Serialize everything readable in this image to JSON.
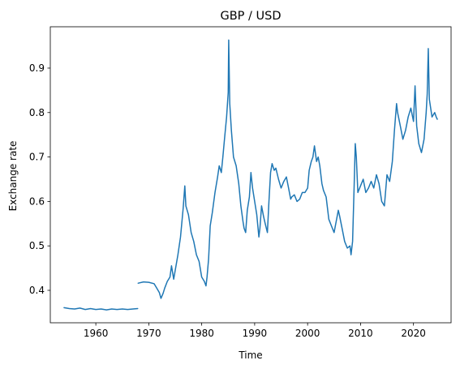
{
  "chart_data": {
    "type": "line",
    "title": "GBP / USD",
    "xlabel": "Time",
    "ylabel": "Exchange rate",
    "xlim": [
      1951.4,
      2027.1
    ],
    "ylim": [
      0.327,
      0.993
    ],
    "xticks": [
      1960,
      1970,
      1980,
      1990,
      2000,
      2010,
      2020
    ],
    "yticks": [
      0.4,
      0.5,
      0.6,
      0.7,
      0.8,
      0.9
    ],
    "grid": false,
    "legend": "none",
    "line_color": "#1f77b4",
    "series": [
      {
        "segments": [
          [
            [
              1954.0,
              0.361
            ],
            [
              1955.0,
              0.359
            ],
            [
              1956.0,
              0.358
            ],
            [
              1957.0,
              0.36
            ],
            [
              1958.0,
              0.357
            ],
            [
              1959.0,
              0.359
            ],
            [
              1960.0,
              0.357
            ],
            [
              1961.0,
              0.358
            ],
            [
              1962.0,
              0.356
            ],
            [
              1963.0,
              0.358
            ],
            [
              1964.0,
              0.357
            ],
            [
              1965.0,
              0.358
            ],
            [
              1966.0,
              0.357
            ],
            [
              1967.0,
              0.358
            ],
            [
              1967.9,
              0.359
            ]
          ],
          [
            [
              1968.0,
              0.416
            ],
            [
              1969.0,
              0.419
            ],
            [
              1970.0,
              0.418
            ],
            [
              1971.0,
              0.415
            ],
            [
              1971.5,
              0.405
            ],
            [
              1972.0,
              0.395
            ],
            [
              1972.3,
              0.382
            ],
            [
              1972.7,
              0.393
            ],
            [
              1973.0,
              0.405
            ],
            [
              1973.5,
              0.42
            ],
            [
              1974.0,
              0.43
            ],
            [
              1974.3,
              0.455
            ],
            [
              1974.7,
              0.425
            ],
            [
              1975.0,
              0.445
            ],
            [
              1975.5,
              0.48
            ],
            [
              1976.0,
              0.52
            ],
            [
              1976.5,
              0.585
            ],
            [
              1976.8,
              0.635
            ],
            [
              1977.0,
              0.59
            ],
            [
              1977.5,
              0.57
            ],
            [
              1978.0,
              0.53
            ],
            [
              1978.5,
              0.51
            ],
            [
              1979.0,
              0.48
            ],
            [
              1979.5,
              0.465
            ],
            [
              1980.0,
              0.43
            ],
            [
              1980.5,
              0.42
            ],
            [
              1980.8,
              0.41
            ],
            [
              1981.0,
              0.43
            ],
            [
              1981.3,
              0.47
            ],
            [
              1981.6,
              0.545
            ],
            [
              1982.0,
              0.575
            ],
            [
              1982.5,
              0.62
            ],
            [
              1983.0,
              0.655
            ],
            [
              1983.3,
              0.68
            ],
            [
              1983.7,
              0.665
            ],
            [
              1984.0,
              0.7
            ],
            [
              1984.3,
              0.74
            ],
            [
              1984.7,
              0.79
            ],
            [
              1985.0,
              0.845
            ],
            [
              1985.1,
              0.963
            ],
            [
              1985.3,
              0.82
            ],
            [
              1985.6,
              0.76
            ],
            [
              1986.0,
              0.7
            ],
            [
              1986.5,
              0.68
            ],
            [
              1987.0,
              0.64
            ],
            [
              1987.4,
              0.59
            ],
            [
              1987.8,
              0.555
            ],
            [
              1988.0,
              0.54
            ],
            [
              1988.3,
              0.53
            ],
            [
              1988.6,
              0.58
            ],
            [
              1989.0,
              0.61
            ],
            [
              1989.3,
              0.665
            ],
            [
              1989.6,
              0.63
            ],
            [
              1990.0,
              0.6
            ],
            [
              1990.4,
              0.57
            ],
            [
              1990.8,
              0.52
            ],
            [
              1991.0,
              0.54
            ],
            [
              1991.3,
              0.59
            ],
            [
              1991.7,
              0.565
            ],
            [
              1992.0,
              0.55
            ],
            [
              1992.4,
              0.53
            ],
            [
              1992.7,
              0.6
            ],
            [
              1993.0,
              0.665
            ],
            [
              1993.3,
              0.685
            ],
            [
              1993.7,
              0.67
            ],
            [
              1994.0,
              0.675
            ],
            [
              1994.5,
              0.65
            ],
            [
              1995.0,
              0.63
            ],
            [
              1995.5,
              0.645
            ],
            [
              1996.0,
              0.655
            ],
            [
              1996.4,
              0.63
            ],
            [
              1996.8,
              0.605
            ],
            [
              1997.0,
              0.61
            ],
            [
              1997.5,
              0.615
            ],
            [
              1998.0,
              0.6
            ],
            [
              1998.5,
              0.605
            ],
            [
              1999.0,
              0.62
            ],
            [
              1999.5,
              0.62
            ],
            [
              2000.0,
              0.63
            ],
            [
              2000.3,
              0.67
            ],
            [
              2000.7,
              0.69
            ],
            [
              2001.0,
              0.7
            ],
            [
              2001.3,
              0.725
            ],
            [
              2001.7,
              0.69
            ],
            [
              2002.0,
              0.7
            ],
            [
              2002.3,
              0.68
            ],
            [
              2002.7,
              0.64
            ],
            [
              2003.0,
              0.625
            ],
            [
              2003.5,
              0.61
            ],
            [
              2004.0,
              0.56
            ],
            [
              2004.5,
              0.545
            ],
            [
              2005.0,
              0.53
            ],
            [
              2005.4,
              0.555
            ],
            [
              2005.8,
              0.58
            ],
            [
              2006.0,
              0.57
            ],
            [
              2006.5,
              0.54
            ],
            [
              2007.0,
              0.51
            ],
            [
              2007.5,
              0.495
            ],
            [
              2008.0,
              0.5
            ],
            [
              2008.2,
              0.48
            ],
            [
              2008.5,
              0.51
            ],
            [
              2008.8,
              0.64
            ],
            [
              2009.0,
              0.73
            ],
            [
              2009.2,
              0.7
            ],
            [
              2009.5,
              0.62
            ],
            [
              2010.0,
              0.635
            ],
            [
              2010.5,
              0.65
            ],
            [
              2011.0,
              0.62
            ],
            [
              2011.5,
              0.63
            ],
            [
              2012.0,
              0.645
            ],
            [
              2012.5,
              0.63
            ],
            [
              2013.0,
              0.66
            ],
            [
              2013.5,
              0.64
            ],
            [
              2014.0,
              0.6
            ],
            [
              2014.5,
              0.59
            ],
            [
              2015.0,
              0.66
            ],
            [
              2015.5,
              0.645
            ],
            [
              2016.0,
              0.69
            ],
            [
              2016.4,
              0.76
            ],
            [
              2016.8,
              0.82
            ],
            [
              2017.0,
              0.8
            ],
            [
              2017.5,
              0.77
            ],
            [
              2018.0,
              0.74
            ],
            [
              2018.5,
              0.76
            ],
            [
              2019.0,
              0.79
            ],
            [
              2019.5,
              0.81
            ],
            [
              2020.0,
              0.78
            ],
            [
              2020.3,
              0.86
            ],
            [
              2020.6,
              0.77
            ],
            [
              2021.0,
              0.73
            ],
            [
              2021.5,
              0.71
            ],
            [
              2022.0,
              0.74
            ],
            [
              2022.4,
              0.8
            ],
            [
              2022.6,
              0.842
            ],
            [
              2022.8,
              0.944
            ],
            [
              2023.0,
              0.83
            ],
            [
              2023.5,
              0.79
            ],
            [
              2024.0,
              0.8
            ],
            [
              2024.3,
              0.79
            ],
            [
              2024.5,
              0.785
            ]
          ]
        ]
      }
    ]
  }
}
